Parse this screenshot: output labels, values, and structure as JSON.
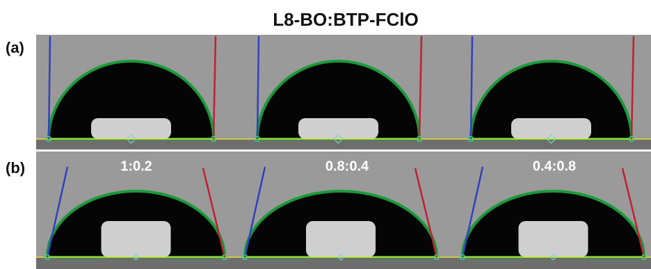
{
  "title": "L8-BO:BTP-FClO",
  "rows": [
    {
      "label": "(a)"
    },
    {
      "label": "(b)",
      "captions": [
        "1:0.2",
        "0.8:0.4",
        "0.4:0.8"
      ]
    }
  ]
}
